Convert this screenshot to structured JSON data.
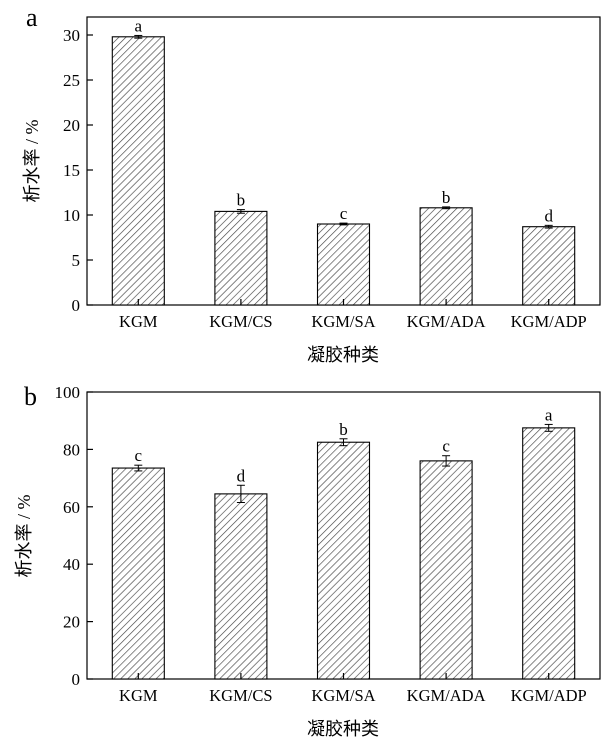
{
  "chart_data": [
    {
      "type": "bar",
      "panel_label": "a",
      "categories": [
        "KGM",
        "KGM/CS",
        "KGM/SA",
        "KGM/ADA",
        "KGM/ADP"
      ],
      "values": [
        29.8,
        10.4,
        9.0,
        10.8,
        8.7
      ],
      "errors": [
        0.15,
        0.2,
        0.1,
        0.1,
        0.15
      ],
      "significance": [
        "a",
        "b",
        "c",
        "b",
        "d"
      ],
      "xlabel": "凝胶种类",
      "ylabel": "析水率 / %",
      "ylim": [
        0,
        32
      ],
      "yticks": [
        "0",
        "5",
        "10",
        "15",
        "20",
        "25",
        "30"
      ],
      "bar_fill": "diagonal-hatch",
      "grid": false,
      "legend": "none"
    },
    {
      "type": "bar",
      "panel_label": "b",
      "categories": [
        "KGM",
        "KGM/CS",
        "KGM/SA",
        "KGM/ADA",
        "KGM/ADP"
      ],
      "values": [
        73.5,
        64.5,
        82.5,
        76.0,
        87.5
      ],
      "errors": [
        1.0,
        3.0,
        1.2,
        1.8,
        1.2
      ],
      "significance": [
        "c",
        "d",
        "b",
        "c",
        "a"
      ],
      "xlabel": "凝胶种类",
      "ylabel": "析水率 / %",
      "ylim": [
        0,
        100
      ],
      "yticks": [
        "0",
        "20",
        "40",
        "60",
        "80",
        "100"
      ],
      "bar_fill": "diagonal-hatch",
      "grid": false,
      "legend": "none"
    }
  ],
  "colors": {
    "bar_stroke": "#000000",
    "hatch": "#444444",
    "background": "#ffffff"
  }
}
